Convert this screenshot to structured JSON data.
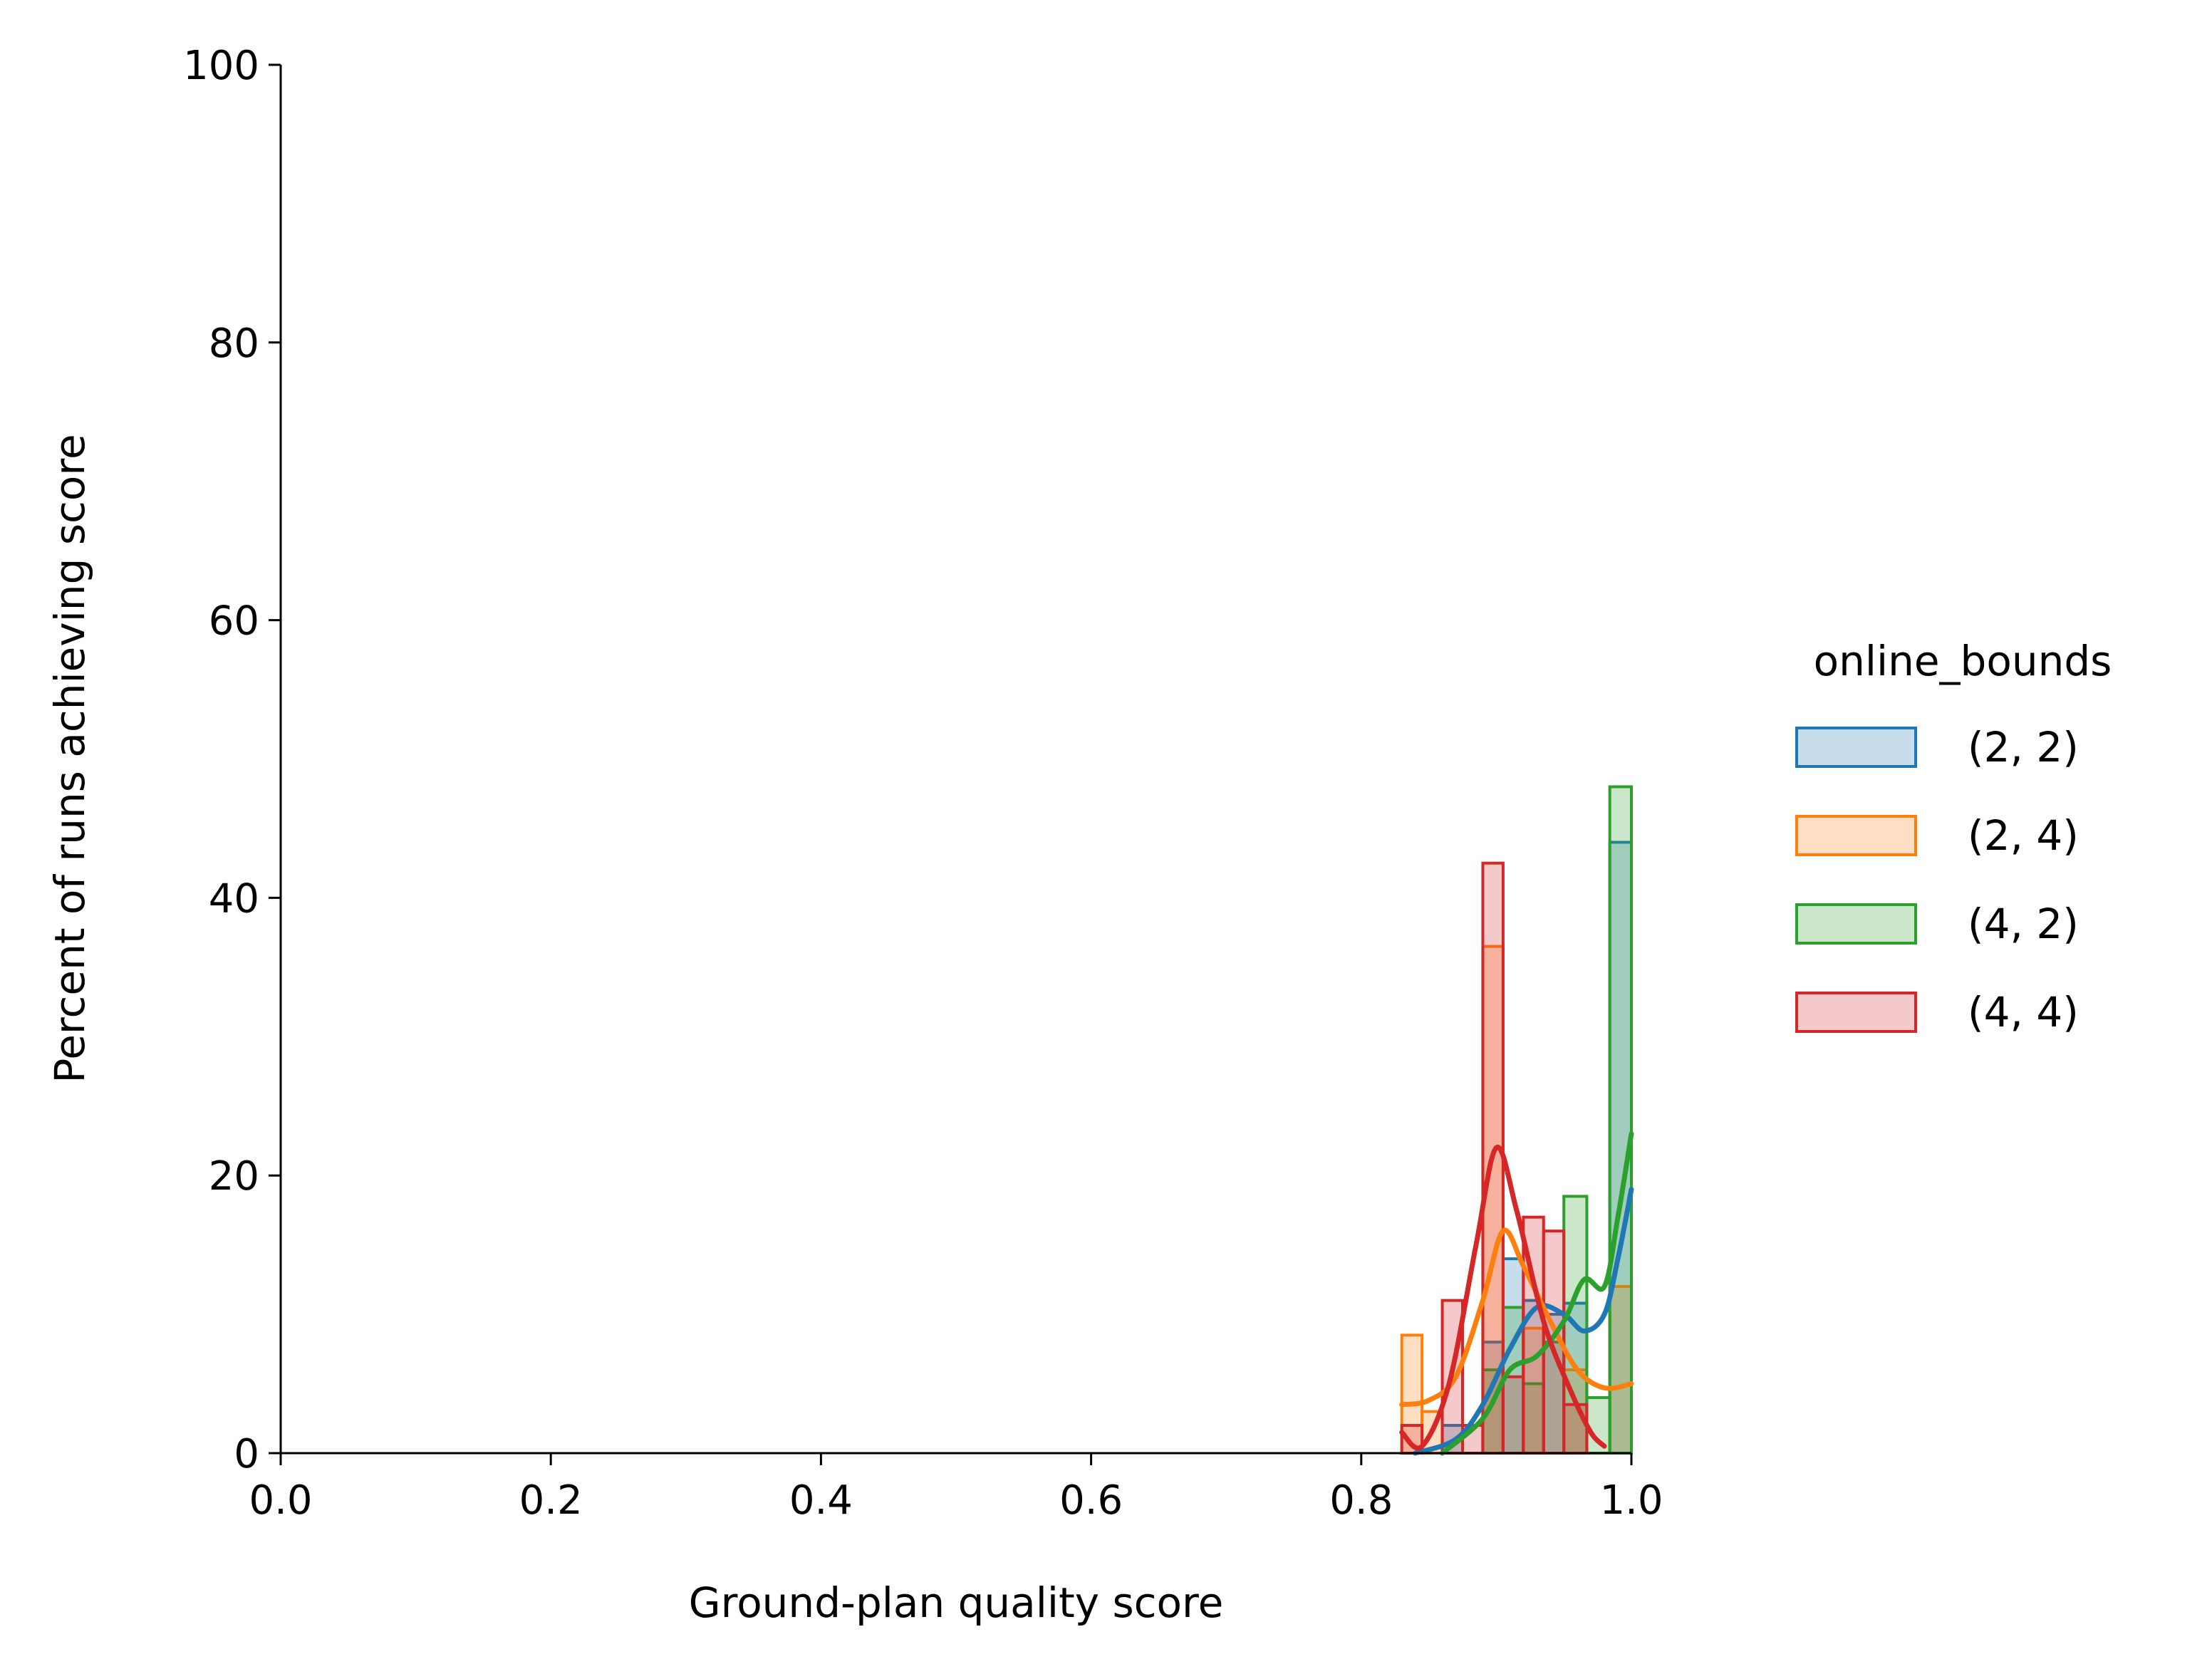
{
  "chart_data": {
    "type": "histogram",
    "xlabel": "Ground-plan quality score",
    "ylabel": "Percent of runs achieving score",
    "xlim": [
      0.0,
      1.0
    ],
    "ylim": [
      0,
      100
    ],
    "x_ticks": [
      "0.0",
      "0.2",
      "0.4",
      "0.6",
      "0.8",
      "1.0"
    ],
    "y_ticks": [
      "0",
      "20",
      "40",
      "60",
      "80",
      "100"
    ],
    "grid": false,
    "legend": {
      "title": "online_bounds",
      "placement": "right",
      "entries": [
        "(2, 2)",
        "(2, 4)",
        "(4, 2)",
        "(4, 4)"
      ]
    },
    "series": [
      {
        "name": "(2, 2)",
        "color": "#1f77b4",
        "bins": [
          {
            "x0": 0.86,
            "x1": 0.875,
            "value": 2.0
          },
          {
            "x0": 0.89,
            "x1": 0.905,
            "value": 8.0
          },
          {
            "x0": 0.905,
            "x1": 0.92,
            "value": 14.0
          },
          {
            "x0": 0.92,
            "x1": 0.935,
            "value": 11.0
          },
          {
            "x0": 0.935,
            "x1": 0.95,
            "value": 10.0
          },
          {
            "x0": 0.95,
            "x1": 0.967,
            "value": 10.8
          },
          {
            "x0": 0.984,
            "x1": 1.0,
            "value": 44.0
          }
        ],
        "kde": [
          [
            0.84,
            0.0
          ],
          [
            0.87,
            1.0
          ],
          [
            0.89,
            3.5
          ],
          [
            0.91,
            7.5
          ],
          [
            0.93,
            10.5
          ],
          [
            0.95,
            10.0
          ],
          [
            0.965,
            8.8
          ],
          [
            0.98,
            10.0
          ],
          [
            0.99,
            14.0
          ],
          [
            1.0,
            19.0
          ]
        ]
      },
      {
        "name": "(2, 4)",
        "color": "#ff7f0e",
        "bins": [
          {
            "x0": 0.83,
            "x1": 0.845,
            "value": 8.5
          },
          {
            "x0": 0.845,
            "x1": 0.86,
            "value": 3.0
          },
          {
            "x0": 0.89,
            "x1": 0.905,
            "value": 36.5
          },
          {
            "x0": 0.92,
            "x1": 0.935,
            "value": 9.0
          },
          {
            "x0": 0.95,
            "x1": 0.967,
            "value": 6.0
          },
          {
            "x0": 0.984,
            "x1": 1.0,
            "value": 12.0
          }
        ],
        "kde": [
          [
            0.83,
            3.5
          ],
          [
            0.85,
            3.8
          ],
          [
            0.87,
            5.5
          ],
          [
            0.89,
            11.0
          ],
          [
            0.905,
            16.0
          ],
          [
            0.92,
            13.5
          ],
          [
            0.94,
            9.5
          ],
          [
            0.96,
            6.0
          ],
          [
            0.98,
            4.7
          ],
          [
            1.0,
            5.0
          ]
        ]
      },
      {
        "name": "(4, 2)",
        "color": "#2ca02c",
        "bins": [
          {
            "x0": 0.89,
            "x1": 0.905,
            "value": 6.0
          },
          {
            "x0": 0.905,
            "x1": 0.92,
            "value": 10.5
          },
          {
            "x0": 0.92,
            "x1": 0.935,
            "value": 5.0
          },
          {
            "x0": 0.935,
            "x1": 0.95,
            "value": 8.0
          },
          {
            "x0": 0.95,
            "x1": 0.967,
            "value": 18.5
          },
          {
            "x0": 0.967,
            "x1": 0.984,
            "value": 4.0
          },
          {
            "x0": 0.984,
            "x1": 1.0,
            "value": 48.0
          }
        ],
        "kde": [
          [
            0.86,
            0.0
          ],
          [
            0.89,
            2.5
          ],
          [
            0.91,
            6.0
          ],
          [
            0.93,
            7.0
          ],
          [
            0.95,
            9.5
          ],
          [
            0.965,
            12.5
          ],
          [
            0.98,
            12.0
          ],
          [
            0.99,
            17.0
          ],
          [
            1.0,
            23.0
          ]
        ]
      },
      {
        "name": "(4, 4)",
        "color": "#d62728",
        "bins": [
          {
            "x0": 0.83,
            "x1": 0.845,
            "value": 2.0
          },
          {
            "x0": 0.86,
            "x1": 0.875,
            "value": 11.0
          },
          {
            "x0": 0.875,
            "x1": 0.89,
            "value": 2.0
          },
          {
            "x0": 0.89,
            "x1": 0.905,
            "value": 42.5
          },
          {
            "x0": 0.905,
            "x1": 0.92,
            "value": 5.5
          },
          {
            "x0": 0.92,
            "x1": 0.935,
            "value": 17.0
          },
          {
            "x0": 0.935,
            "x1": 0.95,
            "value": 16.0
          },
          {
            "x0": 0.95,
            "x1": 0.967,
            "value": 3.5
          }
        ],
        "kde": [
          [
            0.83,
            1.5
          ],
          [
            0.845,
            0.5
          ],
          [
            0.865,
            5.0
          ],
          [
            0.885,
            15.0
          ],
          [
            0.9,
            22.0
          ],
          [
            0.915,
            17.5
          ],
          [
            0.935,
            9.5
          ],
          [
            0.955,
            4.5
          ],
          [
            0.97,
            1.5
          ],
          [
            0.98,
            0.5
          ]
        ]
      }
    ]
  }
}
